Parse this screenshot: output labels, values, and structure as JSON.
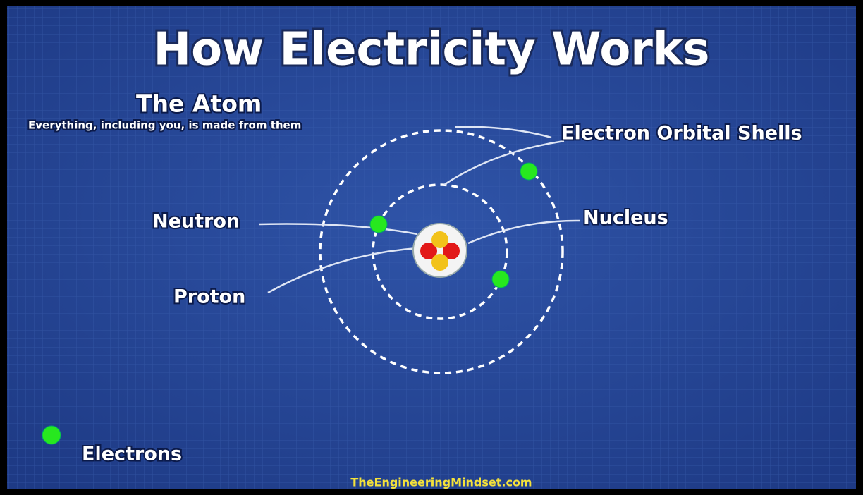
{
  "header": {
    "title": "How Electricity Works",
    "subtitle": "The Atom",
    "description": "Everything, including you, is made from them"
  },
  "labels": {
    "shells": "Electron Orbital Shells",
    "neutron": "Neutron",
    "nucleus": "Nucleus",
    "proton": "Proton",
    "electrons": "Electrons"
  },
  "footer": "TheEngineeringMindset.com"
}
